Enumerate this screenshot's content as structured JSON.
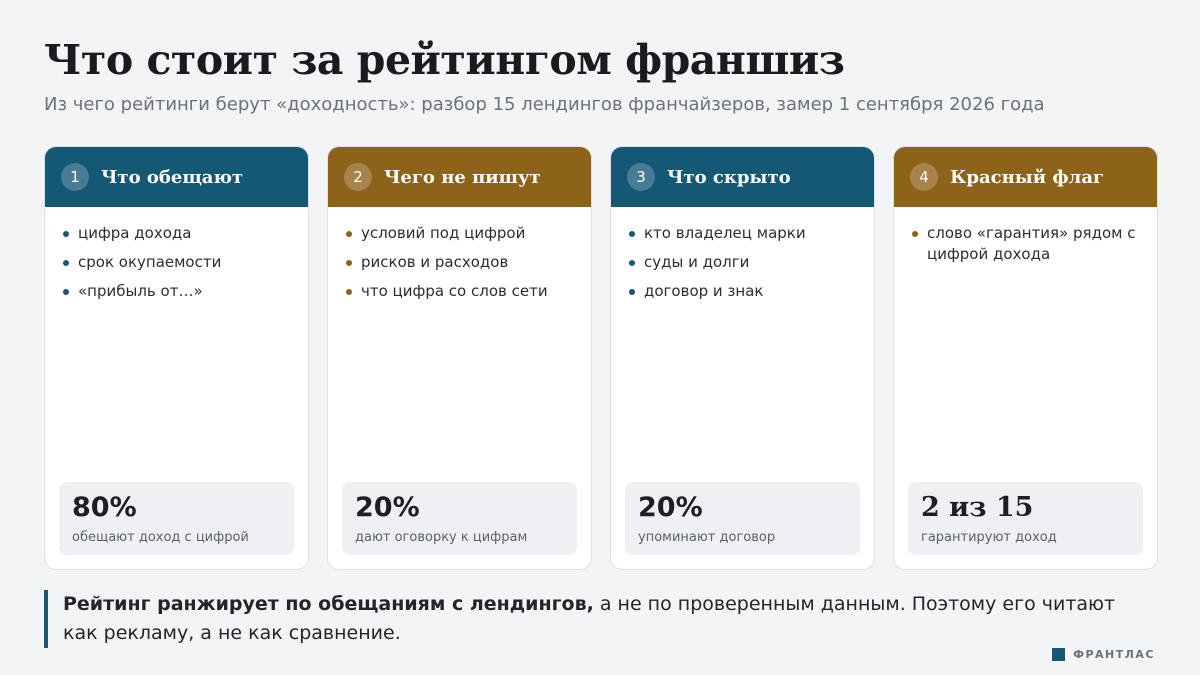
{
  "title": "Что стоит за рейтингом франшиз",
  "subtitle": "Из чего рейтинги берут «доходность»: разбор 15 лендингов франчайзеров, замер 1 сентября 2026 года",
  "colors": {
    "blue": "#155876",
    "brown": "#8d6219"
  },
  "cards": [
    {
      "number": "1",
      "title": "Что обещают",
      "color": "blue",
      "bullets": [
        "цифра дохода",
        "срок окупаемости",
        "«прибыль от…»"
      ],
      "stat_value": "80%",
      "stat_label": "обещают доход с цифрой"
    },
    {
      "number": "2",
      "title": "Чего не пишут",
      "color": "brown",
      "bullets": [
        "условий под цифрой",
        "рисков и расходов",
        "что цифра со слов сети"
      ],
      "stat_value": "20%",
      "stat_label": "дают оговорку к цифрам"
    },
    {
      "number": "3",
      "title": "Что скрыто",
      "color": "blue",
      "bullets": [
        "кто владелец марки",
        "суды и долги",
        "договор и знак"
      ],
      "stat_value": "20%",
      "stat_label": "упоминают договор"
    },
    {
      "number": "4",
      "title": "Красный флаг",
      "color": "brown",
      "bullets": [
        "слово «гарантия» рядом с цифрой дохода"
      ],
      "stat_value": "2 из 15",
      "stat_label": "гарантируют доход"
    }
  ],
  "conclusion": {
    "bold": "Рейтинг ранжирует по обещаниям с лендингов,",
    "rest": " а не по проверенным данным. Поэтому его читают как рекламу, а не как сравнение."
  },
  "brand": {
    "name": "ФРАНТЛАС"
  }
}
